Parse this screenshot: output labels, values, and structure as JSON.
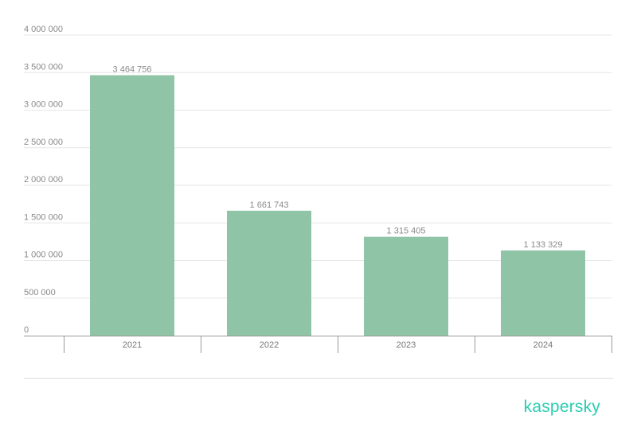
{
  "chart_data": {
    "type": "bar",
    "categories": [
      "2021",
      "2022",
      "2023",
      "2024"
    ],
    "values": [
      3464756,
      1661743,
      1315405,
      1133329
    ],
    "value_labels": [
      "3 464 756",
      "1 661 743",
      "1 315 405",
      "1 133 329"
    ],
    "y_ticks": [
      0,
      500000,
      1000000,
      1500000,
      2000000,
      2500000,
      3000000,
      3500000,
      4000000
    ],
    "y_tick_labels": [
      "0",
      "500 000",
      "1 000 000",
      "1 500 000",
      "2 000 000",
      "2 500 000",
      "3 000 000",
      "3 500 000",
      "4 000 000"
    ],
    "ylim": [
      0,
      4000000
    ],
    "grid": true,
    "legend": "none",
    "title": "",
    "xlabel": "",
    "ylabel": "",
    "bar_color": "#8fc4a7"
  },
  "brand": {
    "name": "kaspersky",
    "color": "#29ccb1"
  }
}
